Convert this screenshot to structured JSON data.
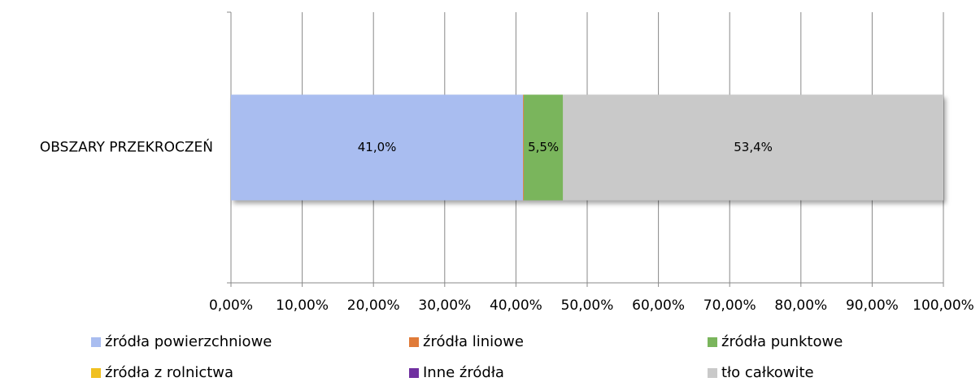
{
  "chart_data": {
    "type": "stacked-bar-horizontal",
    "categories": [
      "OBSZARY PRZEKROCZEŃ"
    ],
    "series": [
      {
        "name": "źródła powierzchniowe",
        "color": "#a9bdf0",
        "values": [
          41.0
        ],
        "value_labels": [
          "41,0%"
        ]
      },
      {
        "name": "źródła liniowe",
        "color": "#e07b39",
        "values": [
          0.1
        ]
      },
      {
        "name": "źródła punktowe",
        "color": "#7ab55c",
        "values": [
          5.5
        ],
        "value_labels": [
          "5,5%"
        ]
      },
      {
        "name": "źródła z rolnictwa",
        "color": "#f0c020",
        "values": [
          0
        ]
      },
      {
        "name": "Inne źródła",
        "color": "#7030a0",
        "values": [
          0
        ]
      },
      {
        "name": "tło całkowite",
        "color": "#c9c9c9",
        "values": [
          53.4
        ],
        "value_labels": [
          "53,4%"
        ]
      }
    ],
    "xlim": [
      0,
      100
    ],
    "xticks": [
      {
        "value": 0,
        "label": "0,00%"
      },
      {
        "value": 10,
        "label": "10,00%"
      },
      {
        "value": 20,
        "label": "20,00%"
      },
      {
        "value": 30,
        "label": "30,00%"
      },
      {
        "value": 40,
        "label": "40,00%"
      },
      {
        "value": 50,
        "label": "50,00%"
      },
      {
        "value": 60,
        "label": "60,00%"
      },
      {
        "value": 70,
        "label": "70,00%"
      },
      {
        "value": 80,
        "label": "80,00%"
      },
      {
        "value": 90,
        "label": "90,00%"
      },
      {
        "value": 100,
        "label": "100,00%"
      }
    ],
    "grid": true,
    "legend": "bottom"
  }
}
